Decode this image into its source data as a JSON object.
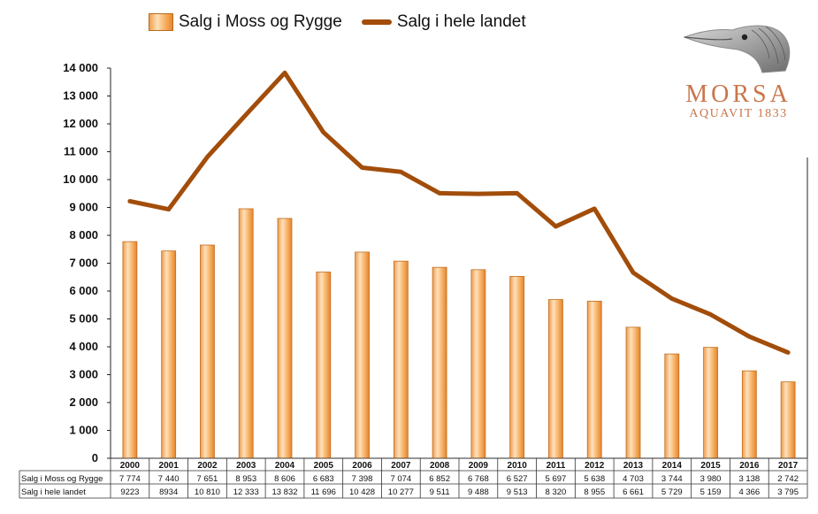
{
  "legend": {
    "bar_label": "Salg i Moss og Rygge",
    "line_label": "Salg i hele landet"
  },
  "logo": {
    "word": "MORSA",
    "sub": "AQUAVIT 1833",
    "icon": "bird-head-icon",
    "color": "#c8764a"
  },
  "colors": {
    "bar_fill": "#f4a65a",
    "bar_edge": "#c06f22",
    "line": "#a24d0a"
  },
  "chart_data": {
    "type": "bar",
    "categories": [
      "2000",
      "2001",
      "2002",
      "2003",
      "2004",
      "2005",
      "2006",
      "2007",
      "2008",
      "2009",
      "2010",
      "2011",
      "2012",
      "2013",
      "2014",
      "2015",
      "2016",
      "2017"
    ],
    "series": [
      {
        "name": "Salg i Moss og Rygge",
        "type": "bar",
        "values": [
          7774,
          7440,
          7651,
          8953,
          8606,
          6683,
          7398,
          7074,
          6852,
          6768,
          6527,
          5697,
          5638,
          4703,
          3744,
          3980,
          3138,
          2742
        ],
        "labels": [
          "7 774",
          "7 440",
          "7 651",
          "8 953",
          "8 606",
          "6 683",
          "7 398",
          "7 074",
          "6 852",
          "6 768",
          "6 527",
          "5 697",
          "5 638",
          "4 703",
          "3 744",
          "3 980",
          "3 138",
          "2 742"
        ]
      },
      {
        "name": "Salg i hele landet",
        "type": "line",
        "values": [
          9223,
          8934,
          10810,
          12333,
          13832,
          11696,
          10428,
          10277,
          9511,
          9488,
          9513,
          8320,
          8955,
          6661,
          5729,
          5159,
          4366,
          3795
        ],
        "labels": [
          "9223",
          "8934",
          "10 810",
          "12 333",
          "13 832",
          "11 696",
          "10 428",
          "10 277",
          "9 511",
          "9 488",
          "9 513",
          "8 320",
          "8 955",
          "6 661",
          "5 729",
          "5 159",
          "4 366",
          "3 795"
        ]
      }
    ],
    "yticks": [
      "0",
      "1 000",
      "2 000",
      "3 000",
      "4 000",
      "5 000",
      "6 000",
      "7 000",
      "8 000",
      "9 000",
      "10 000",
      "11 000",
      "12 000",
      "13 000",
      "14 000"
    ],
    "ylim": [
      0,
      14000
    ],
    "grid": false,
    "legend_position": "top",
    "data_table": true
  }
}
